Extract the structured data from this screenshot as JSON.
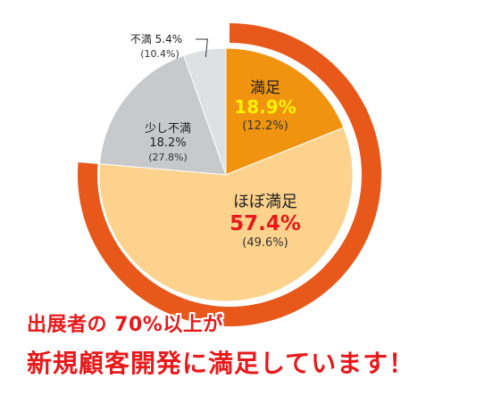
{
  "chart_data": {
    "type": "pie",
    "title": "",
    "outer_ring": {
      "label": "満足+ほぼ満足",
      "value": 76.3,
      "color": "#e8581a"
    },
    "slices": [
      {
        "name": "満足",
        "value": 18.9,
        "value_label": "18.9%",
        "previous_label": "(12.2%)",
        "color": "#f09410",
        "value_color": "#fff200",
        "name_color": "#222222"
      },
      {
        "name": "ほぼ満足",
        "value": 57.4,
        "value_label": "57.4%",
        "previous_label": "(49.6%)",
        "color": "#fcd28c",
        "value_color": "#e8191a",
        "name_color": "#222222"
      },
      {
        "name": "少し不満",
        "value": 18.2,
        "value_label": "18.2%",
        "previous_label": "(27.8%)",
        "color": "#c8c9ca",
        "value_color": "#222222",
        "name_color": "#222222"
      },
      {
        "name": "不満",
        "value": 5.4,
        "value_label": "5.4%",
        "previous_label": "(10.4%)",
        "color": "#dfe0e1",
        "value_color": "#222222",
        "name_color": "#222222"
      }
    ]
  },
  "headline": {
    "line1": "出展者の 70%以上が",
    "line2": "新規顧客開発に満足しています！",
    "color": "#e8191a"
  }
}
